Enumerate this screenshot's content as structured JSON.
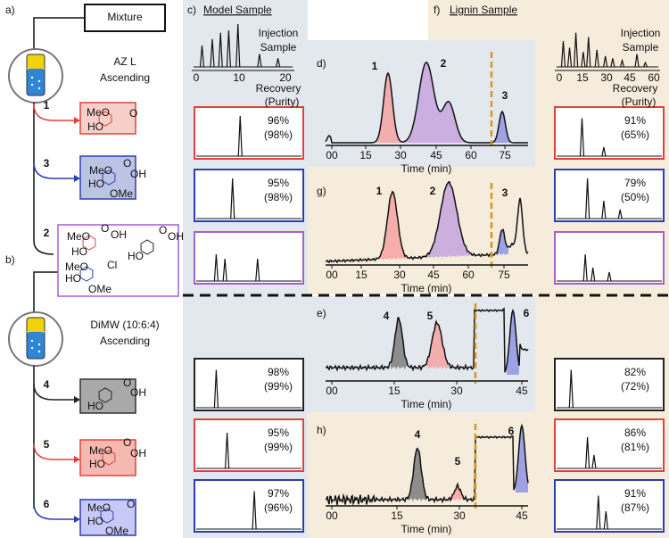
{
  "left": {
    "label_a": "a)",
    "label_b": "b)",
    "mixture": "Mixture",
    "system_a": [
      "AZ L",
      "Ascending"
    ],
    "system_b": [
      "DiMW (10:6:4)",
      "Ascending"
    ],
    "fractions": [
      "1",
      "3",
      "2",
      "4",
      "5",
      "6"
    ]
  },
  "structures": [
    {
      "labels": [
        "MeO",
        "HO",
        "O"
      ]
    },
    {
      "labels": [
        "MeO",
        "HO",
        "OMe",
        "O",
        "OH"
      ]
    },
    {
      "labels": [
        "MeO",
        "HO",
        "O",
        "OH",
        "HO",
        "O",
        "OH",
        "MeO",
        "HO",
        "OMe",
        "Cl"
      ]
    },
    {
      "labels": [
        "HO",
        "O",
        "OH"
      ]
    },
    {
      "labels": [
        "MeO",
        "HO",
        "O",
        "OH"
      ]
    },
    {
      "labels": [
        "MeO",
        "HO",
        "OMe",
        "O"
      ]
    }
  ],
  "model": {
    "label": "c)",
    "header": "Model Sample",
    "injection": [
      "Injection",
      "Sample"
    ],
    "axis_ticks": [
      "0",
      "10",
      "20"
    ],
    "recovery": [
      "Recovery",
      "(Purity)"
    ],
    "results": [
      [
        "96%",
        "(98%)"
      ],
      [
        "95%",
        "(98%)"
      ],
      [
        "98%",
        "(99%)"
      ],
      [
        "95%",
        "(99%)"
      ],
      [
        "97%",
        "(96%)"
      ]
    ]
  },
  "lignin": {
    "label": "f)",
    "header": "Lignin Sample",
    "injection": [
      "Injection",
      "Sample"
    ],
    "axis_ticks": [
      "0",
      "15",
      "30",
      "45",
      "60"
    ],
    "recovery": [
      "Recovery",
      "(Purity)"
    ],
    "results": [
      [
        "91%",
        "(65%)"
      ],
      [
        "79%",
        "(50%)"
      ],
      [
        "82%",
        "(72%)"
      ],
      [
        "86%",
        "(81%)"
      ],
      [
        "91%",
        "(87%)"
      ]
    ]
  },
  "chromatograms": [
    {
      "label": "d)",
      "ticks": [
        "00",
        "15",
        "30",
        "45",
        "60",
        "75"
      ],
      "x_title": "Time (min)",
      "peaks": [
        "1",
        "2",
        "3"
      ]
    },
    {
      "label": "g)",
      "ticks": [
        "00",
        "15",
        "30",
        "45",
        "60",
        "75"
      ],
      "x_title": "Time (min)",
      "peaks": [
        "1",
        "2",
        "3"
      ]
    },
    {
      "label": "e)",
      "ticks": [
        "00",
        "15",
        "30",
        "45"
      ],
      "x_title": "Time (min)",
      "peaks": [
        "4",
        "5",
        "6"
      ]
    },
    {
      "label": "h)",
      "ticks": [
        "00",
        "15",
        "30",
        "45"
      ],
      "x_title": "Time (min)",
      "peaks": [
        "4",
        "5",
        "6"
      ]
    }
  ]
}
